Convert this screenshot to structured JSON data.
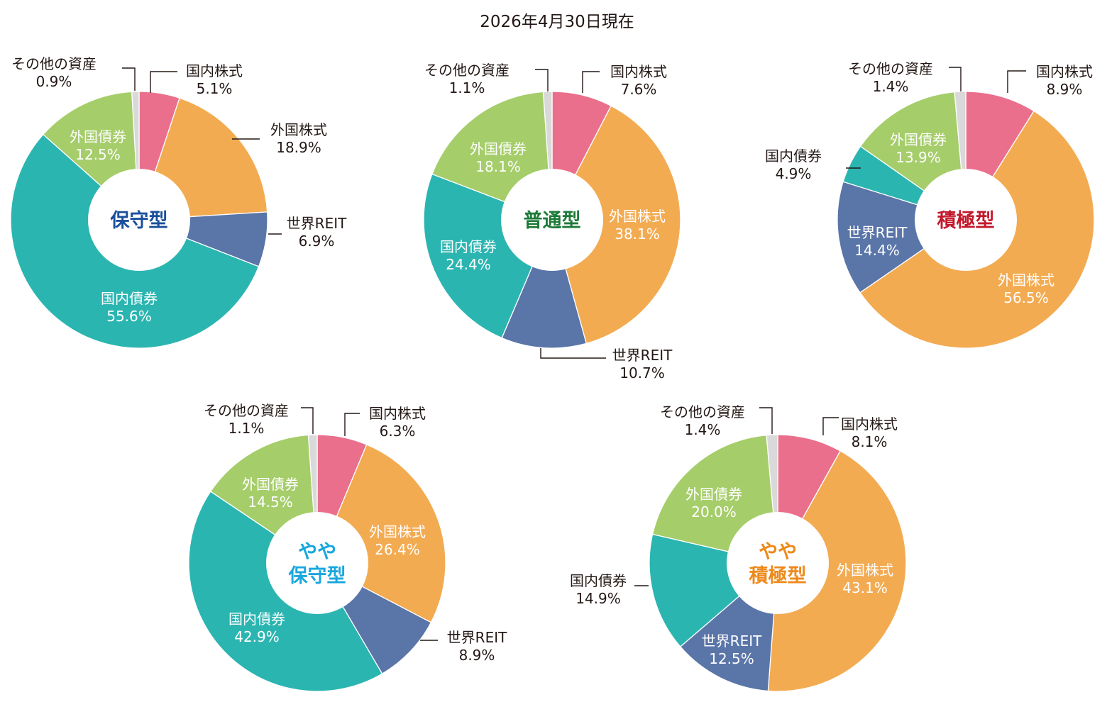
{
  "date_label": "2026年4月30日現在",
  "colors": {
    "国内株式": "#ea6f8c",
    "外国株式": "#f3ab52",
    "世界REIT": "#5a75a8",
    "国内債券": "#2bb5b1",
    "外国債券": "#a5cd6a",
    "その他の資産": "#d9d9d9"
  },
  "chart_data": [
    {
      "type": "pie",
      "center_label": [
        "保守型"
      ],
      "center_color": "#1a4f9c",
      "categories": [
        "国内株式",
        "外国株式",
        "世界REIT",
        "国内債券",
        "外国債券",
        "その他の資産"
      ],
      "values": [
        5.1,
        18.9,
        6.9,
        55.6,
        12.5,
        0.9
      ],
      "value_labels": [
        "5.1%",
        "18.9%",
        "6.9%",
        "55.6%",
        "12.5%",
        "0.9%"
      ]
    },
    {
      "type": "pie",
      "center_label": [
        "普通型"
      ],
      "center_color": "#1e7a38",
      "categories": [
        "国内株式",
        "外国株式",
        "世界REIT",
        "国内債券",
        "外国債券",
        "その他の資産"
      ],
      "values": [
        7.6,
        38.1,
        10.7,
        24.4,
        18.1,
        1.1
      ],
      "value_labels": [
        "7.6%",
        "38.1%",
        "10.7%",
        "24.4%",
        "18.1%",
        "1.1%"
      ]
    },
    {
      "type": "pie",
      "center_label": [
        "積極型"
      ],
      "center_color": "#c3192c",
      "categories": [
        "国内株式",
        "外国株式",
        "世界REIT",
        "国内債券",
        "外国債券",
        "その他の資産"
      ],
      "values": [
        8.9,
        56.5,
        14.4,
        4.9,
        13.9,
        1.4
      ],
      "value_labels": [
        "8.9%",
        "56.5%",
        "14.4%",
        "4.9%",
        "13.9%",
        "1.4%"
      ]
    },
    {
      "type": "pie",
      "center_label": [
        "やや",
        "保守型"
      ],
      "center_color": "#19a7de",
      "categories": [
        "国内株式",
        "外国株式",
        "世界REIT",
        "国内債券",
        "外国債券",
        "その他の資産"
      ],
      "values": [
        6.3,
        26.4,
        8.9,
        42.9,
        14.5,
        1.1
      ],
      "value_labels": [
        "6.3%",
        "26.4%",
        "8.9%",
        "42.9%",
        "14.5%",
        "1.1%"
      ]
    },
    {
      "type": "pie",
      "center_label": [
        "やや",
        "積極型"
      ],
      "center_color": "#ee8a1c",
      "categories": [
        "国内株式",
        "外国株式",
        "世界REIT",
        "国内債券",
        "外国債券",
        "その他の資産"
      ],
      "values": [
        8.1,
        43.1,
        12.5,
        14.9,
        20.0,
        1.4
      ],
      "value_labels": [
        "8.1%",
        "43.1%",
        "12.5%",
        "14.9%",
        "20.0%",
        "1.4%"
      ]
    }
  ]
}
